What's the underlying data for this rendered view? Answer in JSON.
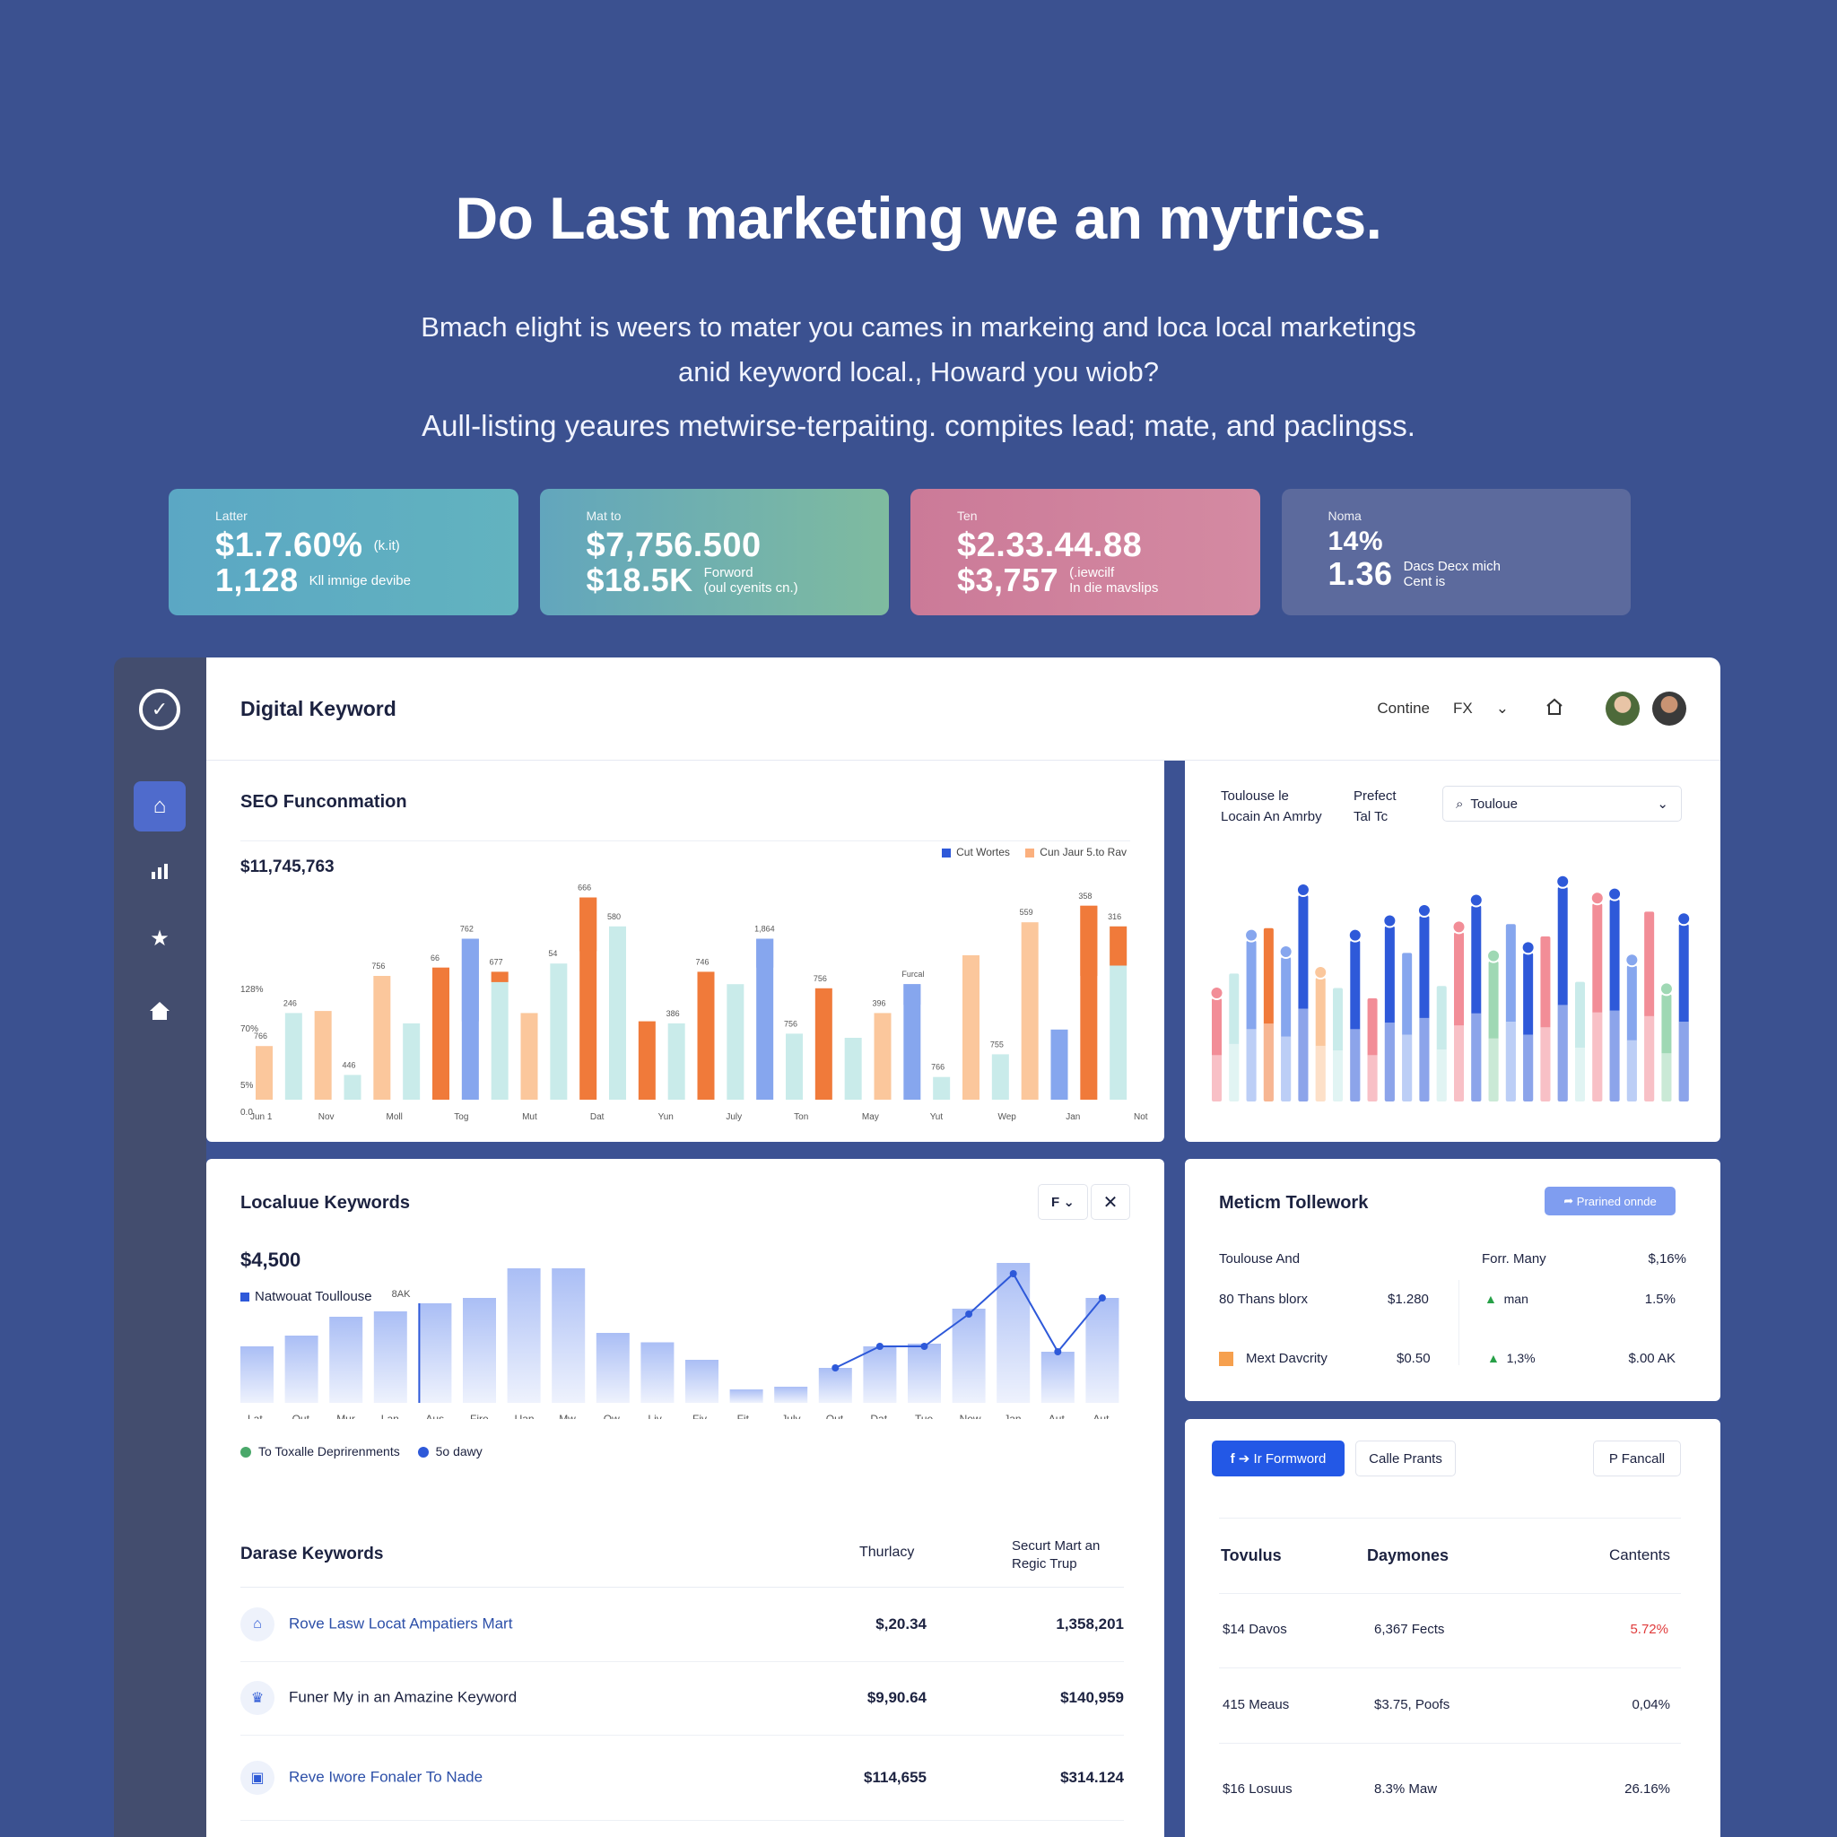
{
  "hero": {
    "title": "Do Last marketing we an mytrics.",
    "line1": "Bmach elight is weers to mater you cames in markeing and loca local marketings",
    "line2": "anid keyword local., Howard you wiob?",
    "line3": "Aull-listing yeaures metwirse-terpaiting. compites lead; mate, and paclingss."
  },
  "kpis": [
    {
      "label": "Latter",
      "v1": "$1.7.60%",
      "n1": "(k.it)",
      "v2": "1,128",
      "n2": "Kll imnige devibe"
    },
    {
      "label": "Mat to",
      "v1": "$7,756.500",
      "n1": "",
      "v2": "$18.5K",
      "n2a": "Forword",
      "n2b": "(oul cyenits cn.)"
    },
    {
      "label": "Ten",
      "v1": "$2.33.44.88",
      "n1": "",
      "v2": "$3,757",
      "n2a": "(.iewcilf",
      "n2b": "In die mavslips"
    },
    {
      "label": "Noma",
      "v1": "14%",
      "n1": "",
      "v2": "1.36",
      "n2a": "Dacs Decx mich",
      "n2b": "Cent is"
    }
  ],
  "topbar": {
    "title": "Digital Keyword",
    "item1": "Contine",
    "item2": "FX"
  },
  "colors": {
    "blue": "#2e59d9",
    "orange": "#f07a3a",
    "peach": "#fbc79c",
    "mint": "#c9ebea",
    "lightblue": "#86a6ee",
    "pink": "#f28d97",
    "green": "#9fd8b4"
  },
  "seo": {
    "title": "SEO Funconmation",
    "total": "$11,745,763",
    "legend1": "Cut Wortes",
    "legend2": "Cun Jaur 5.to Rav",
    "ylabels": [
      "128%",
      "70%",
      "5%",
      "0.0"
    ],
    "xlabels": [
      "Jun 1",
      "Nov",
      "Moll",
      "Tog",
      "Mut",
      "Dat",
      "Yun",
      "July",
      "Ton",
      "May",
      "Yut",
      "Wep",
      "Jan",
      "Not"
    ],
    "annots": [
      "766",
      "246",
      "446",
      "756",
      "66",
      "762",
      "677",
      "54",
      "666",
      "580",
      "386",
      "746",
      "1,864",
      "756",
      "756",
      "396",
      "Furcal",
      "766",
      "755",
      "559",
      "358",
      "316"
    ],
    "bars": [
      {
        "h": 0.26,
        "c": "peach"
      },
      {
        "h": 0.42,
        "c": "mint"
      },
      {
        "h": 0.43,
        "c": "peach"
      },
      {
        "h": 0.12,
        "c": "mint"
      },
      {
        "h": 0.6,
        "c": "peach"
      },
      {
        "h": 0.37,
        "c": "mint"
      },
      {
        "h": 0.64,
        "c": "orange",
        "t": 0.26
      },
      {
        "h": 0.78,
        "c": "lightblue",
        "t": 0.4
      },
      {
        "h": 0.62,
        "c": "mint",
        "t": 0.05
      },
      {
        "h": 0.42,
        "c": "peach"
      },
      {
        "h": 0.66,
        "c": "mint"
      },
      {
        "h": 0.98,
        "c": "orange",
        "t": 0.26
      },
      {
        "h": 0.84,
        "c": "mint"
      },
      {
        "h": 0.38,
        "c": "orange"
      },
      {
        "h": 0.37,
        "c": "mint"
      },
      {
        "h": 0.62,
        "c": "orange"
      },
      {
        "h": 0.56,
        "c": "mint"
      },
      {
        "h": 0.78,
        "c": "lightblue",
        "t": 0.14
      },
      {
        "h": 0.32,
        "c": "mint"
      },
      {
        "h": 0.54,
        "c": "orange"
      },
      {
        "h": 0.3,
        "c": "mint"
      },
      {
        "h": 0.42,
        "c": "peach"
      },
      {
        "h": 0.56,
        "c": "lightblue",
        "t": 0.1
      },
      {
        "h": 0.11,
        "c": "mint"
      },
      {
        "h": 0.7,
        "c": "peach"
      },
      {
        "h": 0.22,
        "c": "mint"
      },
      {
        "h": 0.86,
        "c": "peach"
      },
      {
        "h": 0.34,
        "c": "lightblue"
      },
      {
        "h": 0.94,
        "c": "orange",
        "t": 0.34
      },
      {
        "h": 0.84,
        "c": "mint",
        "t": 0.19
      }
    ]
  },
  "multi": {
    "label1a": "Toulouse le",
    "label1b": "Locain An Amrby",
    "label2a": "Prefect",
    "label2b": "Tal Tc",
    "search": "Touloue",
    "bars": [
      {
        "h": 0.5,
        "c": "pink"
      },
      {
        "h": 0.62,
        "c": "mint"
      },
      {
        "h": 0.78,
        "c": "lightblue"
      },
      {
        "h": 0.84,
        "c": "orange"
      },
      {
        "h": 0.7,
        "c": "lightblue"
      },
      {
        "h": 1.0,
        "c": "blue"
      },
      {
        "h": 0.6,
        "c": "peach"
      },
      {
        "h": 0.55,
        "c": "mint"
      },
      {
        "h": 0.78,
        "c": "blue"
      },
      {
        "h": 0.5,
        "c": "pink"
      },
      {
        "h": 0.85,
        "c": "blue"
      },
      {
        "h": 0.72,
        "c": "lightblue"
      },
      {
        "h": 0.9,
        "c": "blue"
      },
      {
        "h": 0.56,
        "c": "mint"
      },
      {
        "h": 0.82,
        "c": "pink"
      },
      {
        "h": 0.95,
        "c": "blue"
      },
      {
        "h": 0.68,
        "c": "green"
      },
      {
        "h": 0.86,
        "c": "lightblue"
      },
      {
        "h": 0.72,
        "c": "blue"
      },
      {
        "h": 0.8,
        "c": "pink"
      },
      {
        "h": 1.04,
        "c": "blue"
      },
      {
        "h": 0.58,
        "c": "mint"
      },
      {
        "h": 0.96,
        "c": "pink"
      },
      {
        "h": 0.98,
        "c": "blue"
      },
      {
        "h": 0.66,
        "c": "lightblue"
      },
      {
        "h": 0.92,
        "c": "pink"
      },
      {
        "h": 0.52,
        "c": "green"
      },
      {
        "h": 0.86,
        "c": "blue"
      }
    ]
  },
  "local": {
    "title": "Localuue Keywords",
    "filter": "F",
    "total": "$4,500",
    "legend": "Natwouat Toullouse",
    "legend_tag": "8AK",
    "xlabels": [
      "Lat",
      "Out",
      "Mur",
      "Lan",
      "Aus",
      "Fire",
      "Uan",
      "Mw",
      "Ow",
      "Liv",
      "Fiv",
      "Fit",
      "July",
      "Out",
      "Dat",
      "Tue",
      "New",
      "Jan",
      "Aut",
      "Aut"
    ],
    "bars": [
      0.42,
      0.5,
      0.64,
      0.68,
      0.74,
      0.78,
      1.0,
      1.0,
      0.52,
      0.45,
      0.32,
      0.1,
      0.12,
      0.26,
      0.42,
      0.44,
      0.7,
      1.04,
      0.38,
      0.78
    ],
    "line": [
      null,
      null,
      null,
      null,
      null,
      null,
      null,
      null,
      null,
      null,
      null,
      null,
      null,
      0.26,
      0.42,
      0.42,
      0.66,
      0.96,
      0.38,
      0.78
    ],
    "legend_a": "To Toxalle Deprirenments",
    "legend_b": "5o dawy"
  },
  "darase": {
    "title": "Darase Keywords",
    "col1": "Thurlacy",
    "col2a": "Securt Mart an",
    "col2b": "Regic Trup",
    "rows": [
      {
        "name": "Rove Lasw Locat Ampatiers Mart",
        "v1": "$,20.34",
        "v2": "1,358,201",
        "icon": "house-icon"
      },
      {
        "name": "Funer My in an Amazine Keyword",
        "v1": "$9,90.64",
        "v2": "$140,959",
        "icon": "trophy-icon"
      },
      {
        "name": "Reve Iwore Fonaler To Nade",
        "v1": "$114,655",
        "v2": "$314.124",
        "icon": "store-icon"
      }
    ]
  },
  "meticm": {
    "title": "Meticm Tollework",
    "button": "Prarined onnde",
    "h_left": "Toulouse And",
    "h_right": "Forr. Many",
    "h_right_val": "$,16%",
    "r1_left": "80 Thans blorx",
    "r1_val": "$1.280",
    "r1_mid": "man",
    "r1_right": "1.5%",
    "r2_left": "Mext Davcrity",
    "r2_val": "$0.50",
    "r2_mid": "1,3%",
    "r2_right": "$.00 AK"
  },
  "bottom_right": {
    "btn_primary": "Ir Formword",
    "btn_second": "Calle Prants",
    "btn_third": "P Fancall",
    "cols": [
      "Tovulus",
      "Daymones",
      "Cantents"
    ],
    "rows": [
      {
        "a": "$14 Davos",
        "b": "6,367 Fects",
        "c": "5.72%",
        "red": true
      },
      {
        "a": "415 Meaus",
        "b": "$3.75, Poofs",
        "c": "0,04%",
        "red": false
      },
      {
        "a": "$16 Losuus",
        "b": "8.3% Maw",
        "c": "26.16%",
        "red": false
      }
    ]
  }
}
